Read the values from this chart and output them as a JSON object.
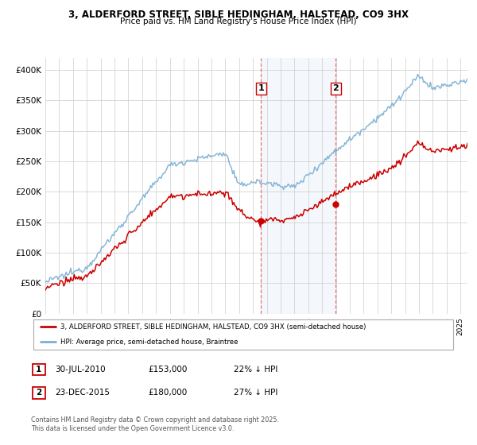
{
  "title1": "3, ALDERFORD STREET, SIBLE HEDINGHAM, HALSTEAD, CO9 3HX",
  "title2": "Price paid vs. HM Land Registry's House Price Index (HPI)",
  "ylim": [
    0,
    420000
  ],
  "yticks": [
    0,
    50000,
    100000,
    150000,
    200000,
    250000,
    300000,
    350000,
    400000
  ],
  "ytick_labels": [
    "£0",
    "£50K",
    "£100K",
    "£150K",
    "£200K",
    "£250K",
    "£300K",
    "£350K",
    "£400K"
  ],
  "sale1_date": 2010.58,
  "sale1_price": 153000,
  "sale2_date": 2015.98,
  "sale2_price": 180000,
  "red_line_color": "#cc0000",
  "blue_line_color": "#7aafd4",
  "legend1": "3, ALDERFORD STREET, SIBLE HEDINGHAM, HALSTEAD, CO9 3HX (semi-detached house)",
  "legend2": "HPI: Average price, semi-detached house, Braintree",
  "footnote1": "Contains HM Land Registry data © Crown copyright and database right 2025.",
  "footnote2": "This data is licensed under the Open Government Licence v3.0.",
  "table_row1": [
    "1",
    "30-JUL-2010",
    "£153,000",
    "22% ↓ HPI"
  ],
  "table_row2": [
    "2",
    "23-DEC-2015",
    "£180,000",
    "27% ↓ HPI"
  ]
}
